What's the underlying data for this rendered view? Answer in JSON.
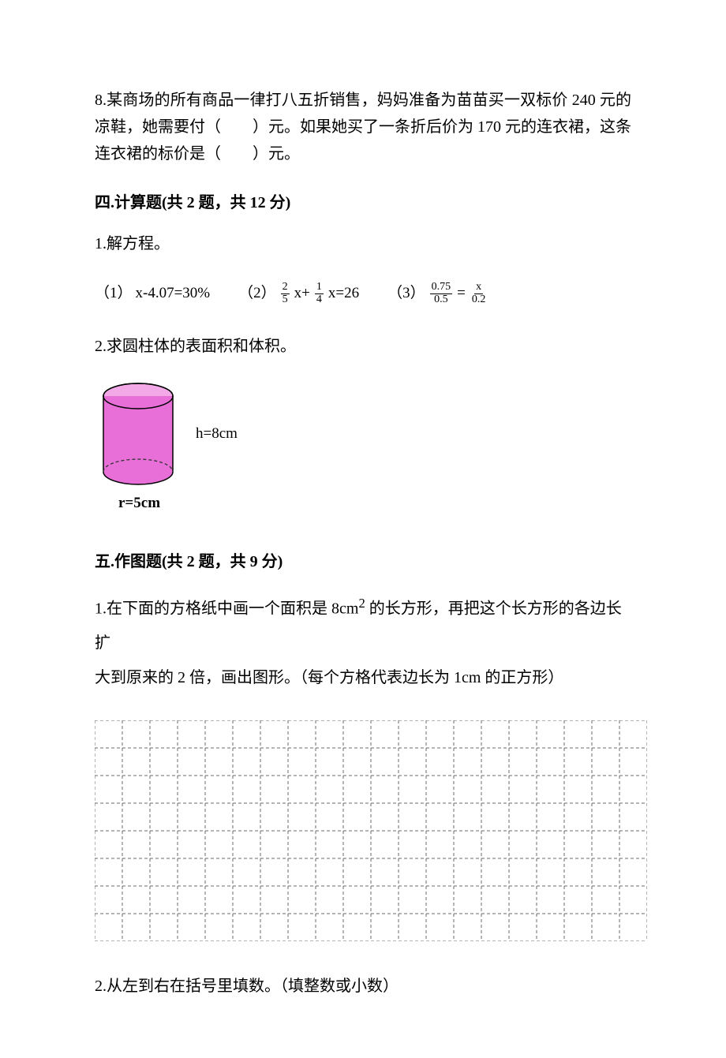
{
  "q8": {
    "text": "8.某商场的所有商品一律打八五折销售，妈妈准备为苗苗买一双标价 240 元的凉鞋，她需要付（　　）元。如果她买了一条折后价为 170 元的连衣裙，这条连衣裙的标价是（　　）元。"
  },
  "sec4": {
    "head": "四.计算题(共 2 题，共 12 分)",
    "q1": "1.解方程。",
    "eq1_label": "（1）",
    "eq1_body": "x-4.07=30%",
    "eq2_label": "（2）",
    "eq2_f1_n": "2",
    "eq2_f1_d": "5",
    "eq2_mid": " x+ ",
    "eq2_f2_n": "1",
    "eq2_f2_d": "4",
    "eq2_tail": " x=26",
    "eq3_label": "（3）",
    "eq3_f1_n": "0.75",
    "eq3_f1_d": "0.5",
    "eq3_eq": " = ",
    "eq3_f2_n": "x",
    "eq3_f2_d": "0.2",
    "q2": "2.求圆柱体的表面积和体积。",
    "cylinder": {
      "h_label": "h=8cm",
      "r_label": "r=5cm",
      "fill": "#e86fd8",
      "top_fill": "#f3a9e8",
      "stroke": "#000000",
      "dash_color": "#333333"
    }
  },
  "sec5": {
    "head": "五.作图题(共 2 题，共 9 分)",
    "q1_l1": "1.在下面的方格纸中画一个面积是 8cm",
    "q1_sup": "2",
    "q1_l1b": " 的长方形，再把这个长方形的各边长扩",
    "q1_l2": "大到原来的 2 倍，画出图形。（每个方格代表边长为 1cm 的正方形）",
    "grid": {
      "cols": 20,
      "rows": 8,
      "cell": 35,
      "stroke": "#6b6b6b",
      "dash": "4,3"
    },
    "q2": "2.从左到右在括号里填数。（填整数或小数）"
  }
}
